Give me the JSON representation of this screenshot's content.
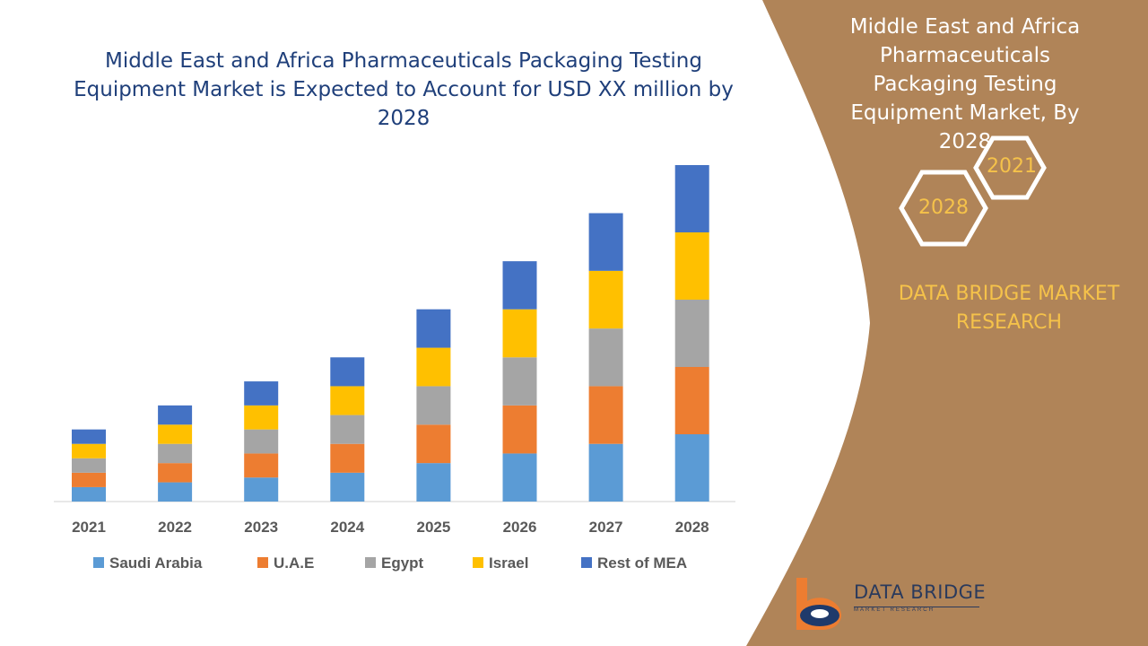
{
  "colors": {
    "saudi_arabia": "#5b9bd5",
    "uae": "#ed7d31",
    "egypt": "#a5a5a5",
    "israel": "#ffc000",
    "rest_of_mea": "#4472c4",
    "side_panel": "#b08458",
    "title": "#1f3f7a",
    "accent": "#f5c24a"
  },
  "chart_data": {
    "type": "bar",
    "stacked": true,
    "title": "Middle East and Africa Pharmaceuticals Packaging Testing Equipment Market is Expected to Account for USD XX million by 2028",
    "categories": [
      "2021",
      "2022",
      "2023",
      "2024",
      "2025",
      "2026",
      "2027",
      "2028"
    ],
    "series": [
      {
        "name": "Saudi Arabia",
        "values": [
          15,
          20,
          25,
          30,
          40,
          50,
          60,
          70
        ]
      },
      {
        "name": "U.A.E",
        "values": [
          15,
          20,
          25,
          30,
          40,
          50,
          60,
          70
        ]
      },
      {
        "name": "Egypt",
        "values": [
          15,
          20,
          25,
          30,
          40,
          50,
          60,
          70
        ]
      },
      {
        "name": "Israel",
        "values": [
          15,
          20,
          25,
          30,
          40,
          50,
          60,
          70
        ]
      },
      {
        "name": "Rest of MEA",
        "values": [
          15,
          20,
          25,
          30,
          40,
          50,
          60,
          70
        ]
      }
    ],
    "ylim": [
      0,
      350
    ],
    "grid": false,
    "legend_position": "bottom",
    "xlabel": "",
    "ylabel": ""
  },
  "side_panel": {
    "title": "Middle East and Africa Pharmaceuticals Packaging Testing Equipment Market, By 2028",
    "year_start": "2021",
    "year_end": "2028",
    "brand_text": "DATA BRIDGE MARKET RESEARCH"
  },
  "logo": {
    "name": "DATA BRIDGE",
    "subtitle": "MARKET RESEARCH"
  }
}
